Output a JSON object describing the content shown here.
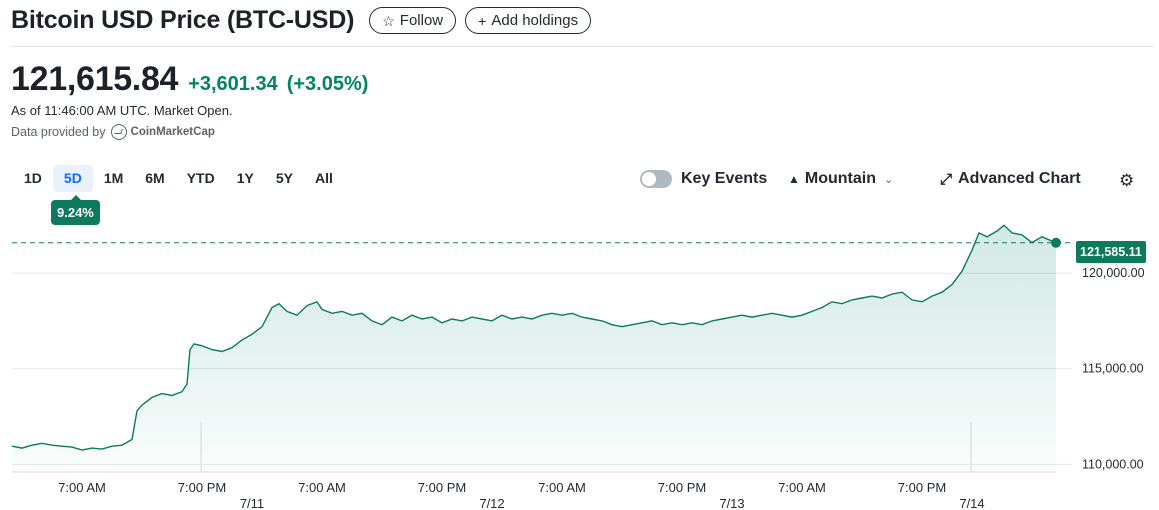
{
  "header": {
    "title": "Bitcoin USD Price (BTC-USD)",
    "follow_label": "Follow",
    "add_holdings_label": "Add holdings"
  },
  "quote": {
    "price": "121,615.84",
    "change": "+3,601.34",
    "change_pct": "(+3.05%)",
    "as_of": "As of 11:46:00 AM UTC. Market Open.",
    "data_provided_by": "Data provided by",
    "provider_name": "CoinMarketCap"
  },
  "ranges": {
    "items": [
      "1D",
      "5D",
      "1M",
      "6M",
      "YTD",
      "1Y",
      "5Y",
      "All"
    ],
    "selected": "5D",
    "selected_change": "9.24%"
  },
  "controls": {
    "key_events_label": "Key Events",
    "key_events_on": false,
    "chart_type_label": "Mountain",
    "advanced_chart_label": "Advanced Chart"
  },
  "icons": {
    "follow": "star-icon",
    "add": "plus-icon",
    "chart_type": "mountain-icon",
    "chart_type_menu": "chevron-down-icon",
    "advanced": "expand-icon",
    "settings": "gear-icon",
    "provider": "coinmarketcap-logo"
  },
  "colors": {
    "up": "#008463",
    "badge": "#0e7a5d",
    "active_range": "#0f69ff",
    "active_range_bg": "#e8f1fc"
  },
  "chart_data": {
    "type": "area",
    "last_value": 121585.11,
    "last_value_label": "121,585.11",
    "prev_close_reference": 121585.11,
    "ylim": [
      109600,
      123300
    ],
    "yticks": [
      110000,
      115000,
      120000
    ],
    "ytick_labels": [
      "110,000.00",
      "115,000.00",
      "120,000.00"
    ],
    "xlabels": [
      {
        "t": 7,
        "text": "7:00 AM"
      },
      {
        "t": 19,
        "text": "7:00 PM"
      },
      {
        "t": 24,
        "text": "7/11"
      },
      {
        "t": 31,
        "text": "7:00 AM"
      },
      {
        "t": 43,
        "text": "7:00 PM"
      },
      {
        "t": 48,
        "text": "7/12"
      },
      {
        "t": 55,
        "text": "7:00 AM"
      },
      {
        "t": 67,
        "text": "7:00 PM"
      },
      {
        "t": 72,
        "text": "7/13"
      },
      {
        "t": 79,
        "text": "7:00 AM"
      },
      {
        "t": 91,
        "text": "7:00 PM"
      },
      {
        "t": 96,
        "text": "7/14"
      }
    ],
    "xlim": [
      0,
      104.4
    ],
    "series": [
      {
        "values": [
          [
            0,
            110950
          ],
          [
            1,
            110850
          ],
          [
            2,
            111000
          ],
          [
            3,
            111100
          ],
          [
            4,
            111000
          ],
          [
            5,
            110950
          ],
          [
            6,
            110900
          ],
          [
            7,
            110750
          ],
          [
            8,
            110850
          ],
          [
            9,
            110800
          ],
          [
            10,
            110950
          ],
          [
            11,
            111000
          ],
          [
            12,
            111300
          ],
          [
            12.5,
            112800
          ],
          [
            13,
            113100
          ],
          [
            14,
            113500
          ],
          [
            15,
            113700
          ],
          [
            16,
            113600
          ],
          [
            17,
            113800
          ],
          [
            17.5,
            114200
          ],
          [
            17.8,
            116000
          ],
          [
            18.2,
            116300
          ],
          [
            19,
            116200
          ],
          [
            20,
            116000
          ],
          [
            21,
            115900
          ],
          [
            22,
            116100
          ],
          [
            23,
            116500
          ],
          [
            24,
            116800
          ],
          [
            25,
            117200
          ],
          [
            26,
            118200
          ],
          [
            26.7,
            118400
          ],
          [
            27.5,
            118000
          ],
          [
            28.5,
            117800
          ],
          [
            29.5,
            118300
          ],
          [
            30.5,
            118500
          ],
          [
            31,
            118100
          ],
          [
            32,
            117900
          ],
          [
            33,
            118000
          ],
          [
            34,
            117800
          ],
          [
            35,
            117900
          ],
          [
            36,
            117500
          ],
          [
            37,
            117300
          ],
          [
            38,
            117700
          ],
          [
            39,
            117500
          ],
          [
            40,
            117800
          ],
          [
            41,
            117600
          ],
          [
            42,
            117700
          ],
          [
            43,
            117400
          ],
          [
            44,
            117600
          ],
          [
            45,
            117500
          ],
          [
            46,
            117700
          ],
          [
            47,
            117600
          ],
          [
            48,
            117500
          ],
          [
            49,
            117800
          ],
          [
            50,
            117600
          ],
          [
            51,
            117700
          ],
          [
            52,
            117600
          ],
          [
            53,
            117800
          ],
          [
            54,
            117900
          ],
          [
            55,
            117800
          ],
          [
            56,
            117900
          ],
          [
            57,
            117700
          ],
          [
            58,
            117600
          ],
          [
            59,
            117500
          ],
          [
            60,
            117300
          ],
          [
            61,
            117200
          ],
          [
            62,
            117300
          ],
          [
            63,
            117400
          ],
          [
            64,
            117500
          ],
          [
            65,
            117300
          ],
          [
            66,
            117400
          ],
          [
            67,
            117300
          ],
          [
            68,
            117400
          ],
          [
            69,
            117300
          ],
          [
            70,
            117500
          ],
          [
            71,
            117600
          ],
          [
            72,
            117700
          ],
          [
            73,
            117800
          ],
          [
            74,
            117700
          ],
          [
            75,
            117800
          ],
          [
            76,
            117900
          ],
          [
            77,
            117800
          ],
          [
            78,
            117700
          ],
          [
            79,
            117800
          ],
          [
            80,
            118000
          ],
          [
            81,
            118200
          ],
          [
            82,
            118500
          ],
          [
            83,
            118400
          ],
          [
            84,
            118600
          ],
          [
            85,
            118700
          ],
          [
            86,
            118800
          ],
          [
            87,
            118700
          ],
          [
            88,
            118900
          ],
          [
            89,
            119000
          ],
          [
            90,
            118600
          ],
          [
            91,
            118500
          ],
          [
            92,
            118800
          ],
          [
            93,
            119000
          ],
          [
            94,
            119400
          ],
          [
            95,
            120100
          ],
          [
            96,
            121200
          ],
          [
            96.7,
            122100
          ],
          [
            97.5,
            121900
          ],
          [
            98.5,
            122200
          ],
          [
            99.2,
            122500
          ],
          [
            100,
            122100
          ],
          [
            101,
            122000
          ],
          [
            102,
            121600
          ],
          [
            103,
            121900
          ],
          [
            104.4,
            121585
          ]
        ]
      }
    ]
  }
}
